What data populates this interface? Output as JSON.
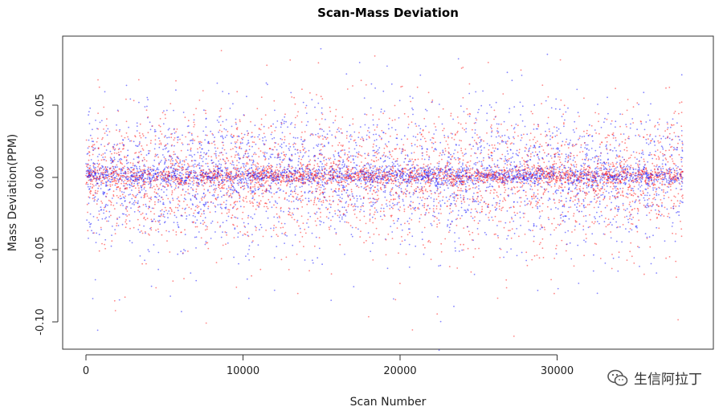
{
  "chart_data": {
    "type": "scatter",
    "title": "Scan-Mass Deviation",
    "xlabel": "Scan Number",
    "ylabel": "Mass Deviation(PPM)",
    "xlim": [
      0,
      40000
    ],
    "ylim": [
      -0.12,
      0.09
    ],
    "x_ticks": [
      0,
      10000,
      20000,
      30000
    ],
    "x_tick_labels": [
      "0",
      "10000",
      "20000",
      "30000"
    ],
    "y_ticks": [
      -0.1,
      -0.05,
      0.0,
      0.05
    ],
    "y_tick_labels": [
      "-0.10",
      "-0.05",
      "0.00",
      "0.05"
    ],
    "x_data_range": [
      0,
      38000
    ],
    "center_line_y": 0.001,
    "spread_sd": 0.02,
    "series_colors": [
      "#ff2020",
      "#2020ff"
    ],
    "grid": false,
    "legend": "none"
  },
  "watermark": {
    "icon": "wechat-icon",
    "text": "生信阿拉丁"
  }
}
